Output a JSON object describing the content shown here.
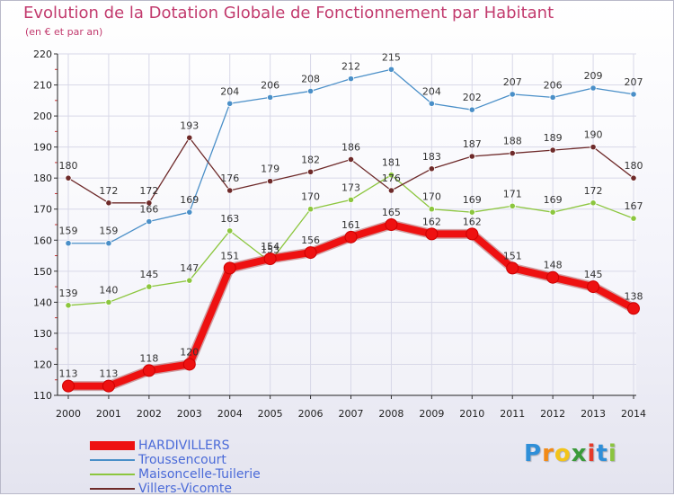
{
  "chart_data": {
    "type": "line",
    "title": "Evolution de la Dotation Globale de Fonctionnement par Habitant",
    "subtitle": "(en € et par an)",
    "xlabel": "",
    "ylabel": "",
    "x": [
      "2000",
      "2001",
      "2002",
      "2003",
      "2004",
      "2005",
      "2006",
      "2007",
      "2008",
      "2009",
      "2010",
      "2011",
      "2012",
      "2013",
      "2014"
    ],
    "ylim": [
      110,
      220
    ],
    "yticks": [
      "110",
      "120",
      "130",
      "140",
      "150",
      "160",
      "170",
      "180",
      "190",
      "200",
      "210",
      "220"
    ],
    "grid": true,
    "legend_position": "bottom-left",
    "series": [
      {
        "name": "HARDIVILLERS",
        "color": "#ee1111",
        "values": [
          113,
          113,
          118,
          120,
          151,
          154,
          156,
          161,
          165,
          162,
          162,
          151,
          148,
          145,
          138
        ],
        "labels": [
          "113",
          "113",
          "118",
          "120",
          "151",
          "154",
          "156",
          "161",
          "165",
          "162",
          "162",
          "151",
          "148",
          "145",
          "138"
        ]
      },
      {
        "name": "Troussencourt",
        "color": "#4a8fc8",
        "values": [
          159,
          159,
          166,
          169,
          204,
          206,
          208,
          212,
          215,
          204,
          202,
          207,
          206,
          209,
          207
        ],
        "labels": [
          "159",
          "159",
          "166",
          "169",
          "204",
          "206",
          "208",
          "212",
          "215",
          "204",
          "202",
          "207",
          "206",
          "209",
          "207"
        ]
      },
      {
        "name": "Maisoncelle-Tuilerie",
        "color": "#8cc63e",
        "values": [
          139,
          140,
          145,
          147,
          163,
          153,
          170,
          173,
          181,
          170,
          169,
          171,
          169,
          172,
          167
        ],
        "labels": [
          "139",
          "140",
          "145",
          "147",
          "163",
          "153",
          "170",
          "173",
          "181",
          "170",
          "169",
          "171",
          "169",
          "172",
          "167"
        ]
      },
      {
        "name": "Villers-Vicomte",
        "color": "#6e2a2a",
        "values": [
          180,
          172,
          172,
          193,
          176,
          179,
          182,
          186,
          176,
          183,
          187,
          188,
          189,
          190,
          180
        ],
        "labels": [
          "180",
          "172",
          "172",
          "193",
          "176",
          "179",
          "182",
          "186",
          "176",
          "183",
          "187",
          "188",
          "189",
          "190",
          "180"
        ]
      }
    ]
  },
  "legend": {
    "items": [
      {
        "label": "HARDIVILLERS",
        "color": "#ee1111"
      },
      {
        "label": "Troussencourt",
        "color": "#4a8fc8"
      },
      {
        "label": "Maisoncelle-Tuilerie",
        "color": "#8cc63e"
      },
      {
        "label": "Villers-Vicomte",
        "color": "#6e2a2a"
      }
    ]
  },
  "logo": {
    "letters": [
      "P",
      "r",
      "o",
      "x",
      "i",
      "t",
      "i"
    ],
    "colors": [
      "#2f8fd8",
      "#f28a17",
      "#f2c41a",
      "#3a9a3a",
      "#e53a2a",
      "#2f8fd8",
      "#8bc43f"
    ]
  },
  "colors": {
    "title": "#c23b6e",
    "axis": "#222222",
    "grid": "#d8d8e8"
  }
}
